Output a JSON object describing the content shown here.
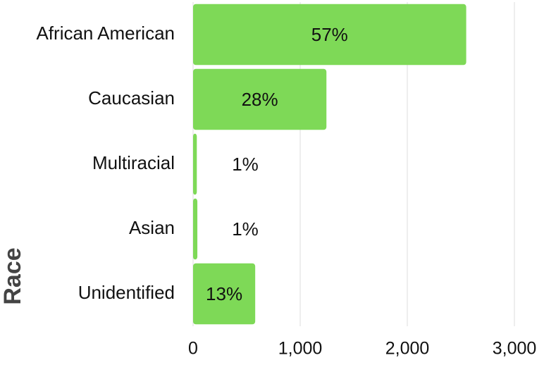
{
  "chart_data": {
    "type": "hbar",
    "y_label": "Race",
    "categories": [
      "African American",
      "Caucasian",
      "Multiracial",
      "Asian",
      "Unidentified"
    ],
    "values": [
      2550,
      1245,
      35,
      40,
      580
    ],
    "value_labels": [
      "57%",
      "28%",
      "1%",
      "1%",
      "13%"
    ],
    "color": "#7ed957",
    "xlim": [
      0,
      3000
    ],
    "xticks": [
      0,
      {
        "value": 1000,
        "label": "1,000"
      },
      {
        "value": 2000,
        "label": "2,000"
      },
      {
        "value": 3000,
        "label": "3,000"
      }
    ],
    "grid": true
  }
}
